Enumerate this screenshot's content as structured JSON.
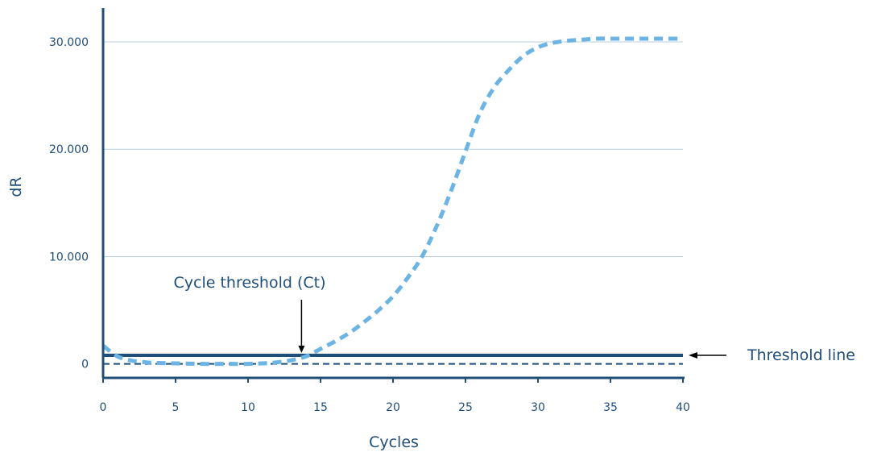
{
  "colors": {
    "axis": "#1f4e79",
    "text": "#1f4e79",
    "grid": "#b8cfe0",
    "curve": "#6cb4e4",
    "threshold": "#1f4e79",
    "arrow": "#000000"
  },
  "chart_data": {
    "type": "line",
    "title": "",
    "xlabel": "Cycles",
    "ylabel": "dR",
    "xlim": [
      0,
      40
    ],
    "ylim": [
      -1300,
      33000
    ],
    "x_ticks": [
      0,
      5,
      10,
      15,
      20,
      25,
      30,
      35,
      40
    ],
    "y_ticks": [
      {
        "value": 0,
        "label": "0"
      },
      {
        "value": 10000,
        "label": "10.000"
      },
      {
        "value": 20000,
        "label": "20.000"
      },
      {
        "value": 30000,
        "label": "30.000"
      }
    ],
    "grid": "horizontal",
    "series": [
      {
        "style": "dashed",
        "x": [
          0,
          1,
          2,
          3,
          4,
          5,
          6,
          7,
          8,
          9,
          10,
          11,
          12,
          13,
          14,
          15,
          16,
          17,
          18,
          19,
          20,
          21,
          22,
          23,
          24,
          25,
          26,
          27,
          28,
          29,
          30,
          31,
          32,
          33,
          34,
          35,
          36,
          37,
          38,
          39,
          40
        ],
        "values": [
          1700,
          700,
          300,
          150,
          80,
          50,
          20,
          0,
          0,
          0,
          0,
          50,
          150,
          350,
          700,
          1400,
          2100,
          2900,
          3900,
          5000,
          6300,
          8000,
          10000,
          12800,
          16100,
          19800,
          23400,
          25800,
          27400,
          28700,
          29500,
          29900,
          30100,
          30200,
          30300,
          30300,
          30300,
          30300,
          30300,
          30300,
          30300
        ]
      }
    ],
    "baseline": {
      "style": "dashed",
      "value": 0
    },
    "threshold_line": {
      "value": 800,
      "label": "Threshold line"
    },
    "annotations": [
      {
        "text": "Cycle threshold (Ct)",
        "x": 13.8
      }
    ]
  }
}
